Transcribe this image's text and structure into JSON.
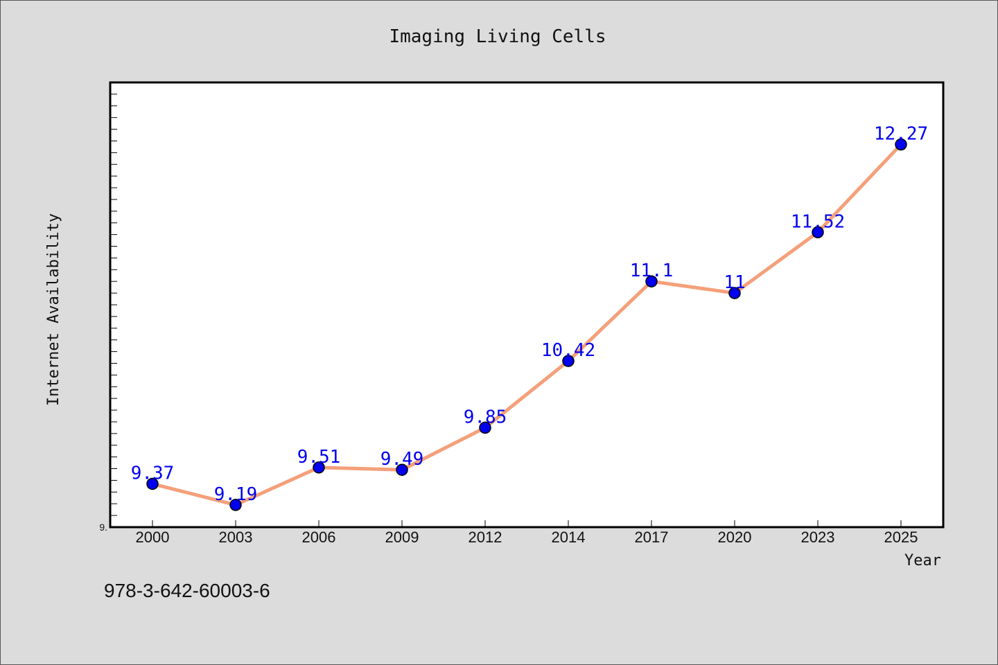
{
  "chart_data": {
    "type": "line",
    "title": "Imaging Living Cells",
    "xlabel": "Year",
    "ylabel": "Internet Availability",
    "categories": [
      "2000",
      "2003",
      "2006",
      "2009",
      "2012",
      "2014",
      "2017",
      "2020",
      "2023",
      "2025"
    ],
    "series": [
      {
        "values": [
          9.37,
          9.19,
          9.51,
          9.49,
          9.85,
          10.42,
          11.1,
          11,
          11.52,
          12.27
        ],
        "labels": [
          "9.37",
          "9.19",
          "9.51",
          "9.49",
          "9.85",
          "10.42",
          "11.1",
          "11",
          "11.52",
          "12.27"
        ]
      }
    ],
    "ylim": [
      9.0,
      12.8
    ],
    "ytick_label": "9.",
    "grid": false,
    "colors": {
      "line": "#f4a07a",
      "marker": "#0000ee",
      "data_label": "#0000ee",
      "plot_background": "#ffffff",
      "figure_background": "#dcdcdc"
    }
  },
  "footer": {
    "isbn": "978-3-642-60003-6"
  }
}
